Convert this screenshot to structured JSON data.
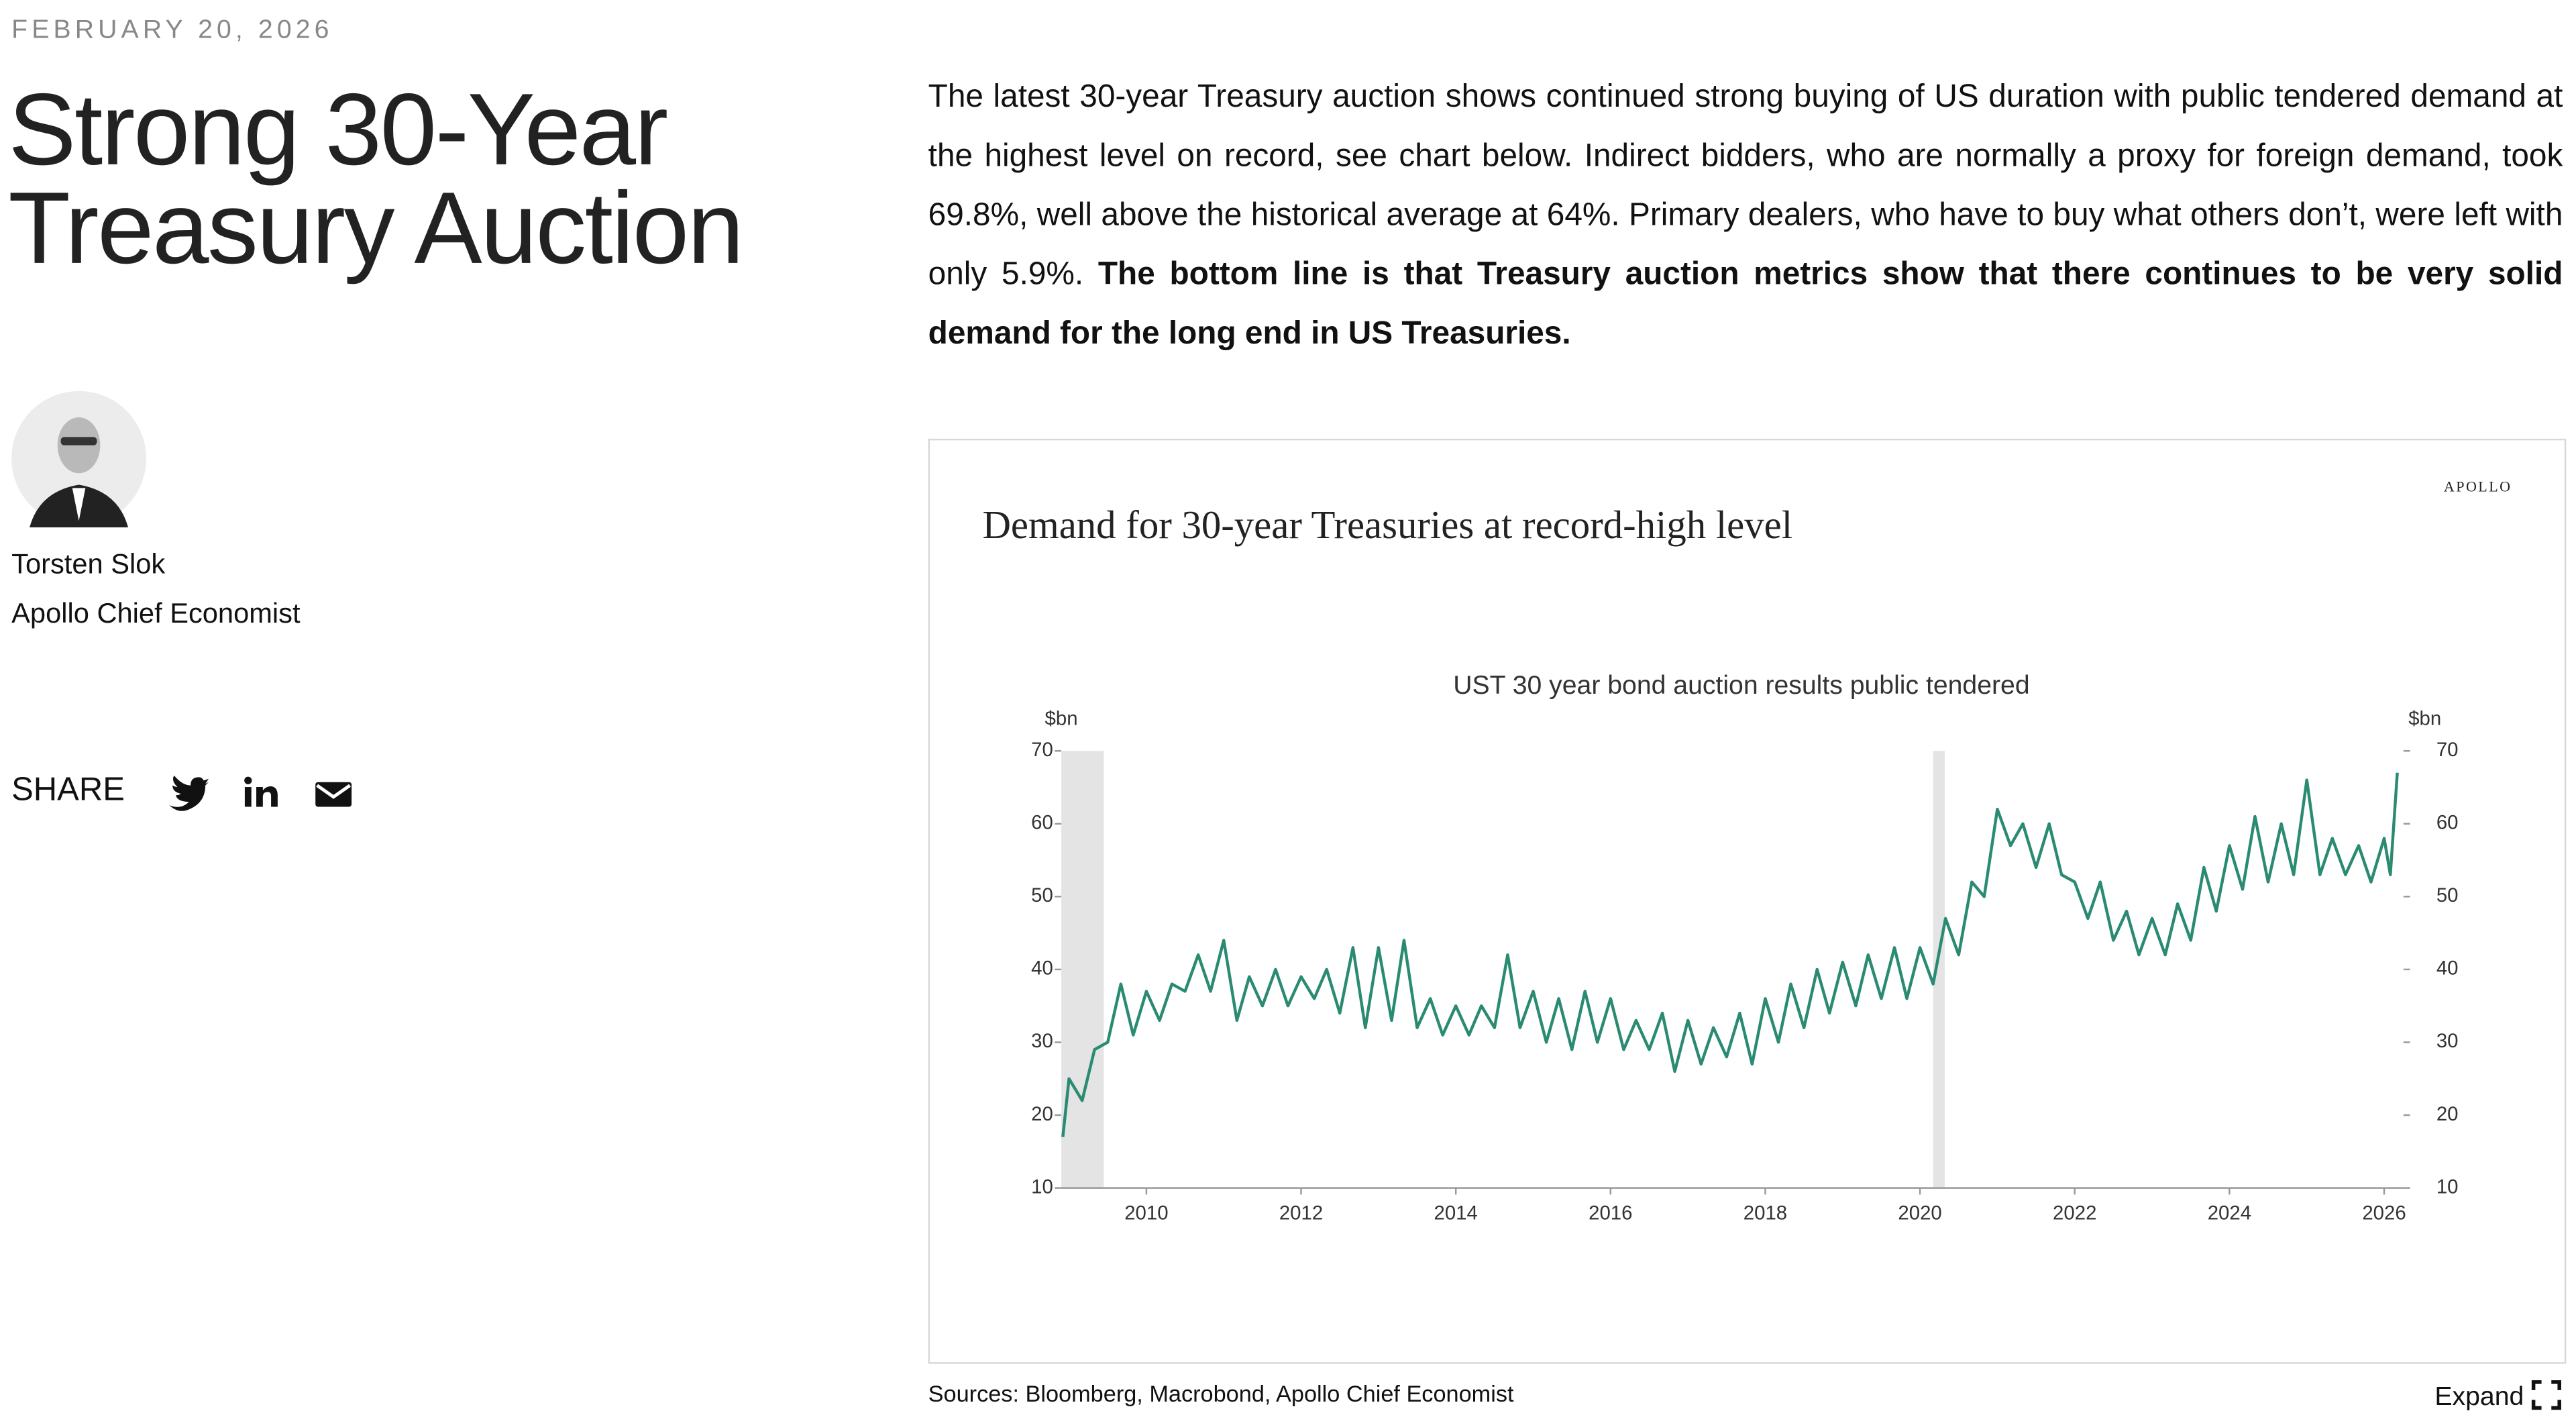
{
  "header": {
    "date": "FEBRUARY 20, 2026",
    "title": "Strong 30-Year Treasury Auction"
  },
  "author": {
    "name": "Torsten Slok",
    "role": "Apollo Chief Economist"
  },
  "share": {
    "label": "SHARE"
  },
  "article": {
    "text": "The latest 30-year Treasury auction shows continued strong buying of US duration with public tendered demand at the highest level on record, see chart below. Indirect bidders, who are normally a proxy for foreign demand, took 69.8%, well above the historical average at 64%. Primary dealers, who have to buy what others don’t, were left with only 5.9%. ",
    "bold": "The bottom line is that Treasury auction metrics show that there continues to be very solid demand for the long end in US Treasuries."
  },
  "chart_data": {
    "type": "line",
    "title": "Demand for 30-year Treasuries at record-high level",
    "brand": "APOLLO",
    "subtitle": "UST 30 year bond auction results public tendered",
    "y_unit": "$bn",
    "y2_unit": "$bn",
    "source": "Sources: Bloomberg, Macrobond, Apollo Chief Economist",
    "xlim": [
      2008.9,
      2026.25
    ],
    "xticks": [
      2010,
      2012,
      2014,
      2016,
      2018,
      2020,
      2022,
      2024,
      2026
    ],
    "ylim": [
      10,
      70
    ],
    "yticks": [
      10,
      20,
      30,
      40,
      50,
      60,
      70
    ],
    "y2lim": [
      10,
      70
    ],
    "y2ticks": [
      10,
      20,
      30,
      40,
      50,
      60,
      70
    ],
    "shaded_periods": [
      [
        2008.9,
        2009.45
      ],
      [
        2020.17,
        2020.32
      ]
    ],
    "shade_color": "#e3e4e3",
    "x": [
      2008.92,
      2009.0,
      2009.17,
      2009.33,
      2009.5,
      2009.67,
      2009.83,
      2010.0,
      2010.17,
      2010.33,
      2010.5,
      2010.67,
      2010.83,
      2011.0,
      2011.17,
      2011.33,
      2011.5,
      2011.67,
      2011.83,
      2012.0,
      2012.17,
      2012.33,
      2012.5,
      2012.67,
      2012.83,
      2013.0,
      2013.17,
      2013.33,
      2013.5,
      2013.67,
      2013.83,
      2014.0,
      2014.17,
      2014.33,
      2014.5,
      2014.67,
      2014.83,
      2015.0,
      2015.17,
      2015.33,
      2015.5,
      2015.67,
      2015.83,
      2016.0,
      2016.17,
      2016.33,
      2016.5,
      2016.67,
      2016.83,
      2017.0,
      2017.17,
      2017.33,
      2017.5,
      2017.67,
      2017.83,
      2018.0,
      2018.17,
      2018.33,
      2018.5,
      2018.67,
      2018.83,
      2019.0,
      2019.17,
      2019.33,
      2019.5,
      2019.67,
      2019.83,
      2020.0,
      2020.17,
      2020.33,
      2020.5,
      2020.67,
      2020.83,
      2021.0,
      2021.17,
      2021.33,
      2021.5,
      2021.67,
      2021.83,
      2022.0,
      2022.17,
      2022.33,
      2022.5,
      2022.67,
      2022.83,
      2023.0,
      2023.17,
      2023.33,
      2023.5,
      2023.67,
      2023.83,
      2024.0,
      2024.17,
      2024.33,
      2024.5,
      2024.67,
      2024.83,
      2025.0,
      2025.17,
      2025.33,
      2025.5,
      2025.67,
      2025.83,
      2026.0,
      2026.08,
      2026.17
    ],
    "series": [
      {
        "color": "#2a8a72",
        "values": [
          17,
          25,
          22,
          29,
          30,
          38,
          31,
          37,
          33,
          38,
          37,
          42,
          37,
          44,
          33,
          39,
          35,
          40,
          35,
          39,
          36,
          40,
          34,
          43,
          32,
          43,
          33,
          44,
          32,
          36,
          31,
          35,
          31,
          35,
          32,
          42,
          32,
          37,
          30,
          36,
          29,
          37,
          30,
          36,
          29,
          33,
          29,
          34,
          26,
          33,
          27,
          32,
          28,
          34,
          27,
          36,
          30,
          38,
          32,
          40,
          34,
          41,
          35,
          42,
          36,
          43,
          36,
          43,
          38,
          47,
          42,
          52,
          50,
          62,
          57,
          60,
          54,
          60,
          53,
          52,
          47,
          52,
          44,
          48,
          42,
          47,
          42,
          49,
          44,
          54,
          48,
          57,
          51,
          61,
          52,
          60,
          53,
          66,
          53,
          58,
          53,
          57,
          52,
          58,
          53,
          67
        ]
      }
    ]
  },
  "footer": {
    "expand": "Expand"
  }
}
